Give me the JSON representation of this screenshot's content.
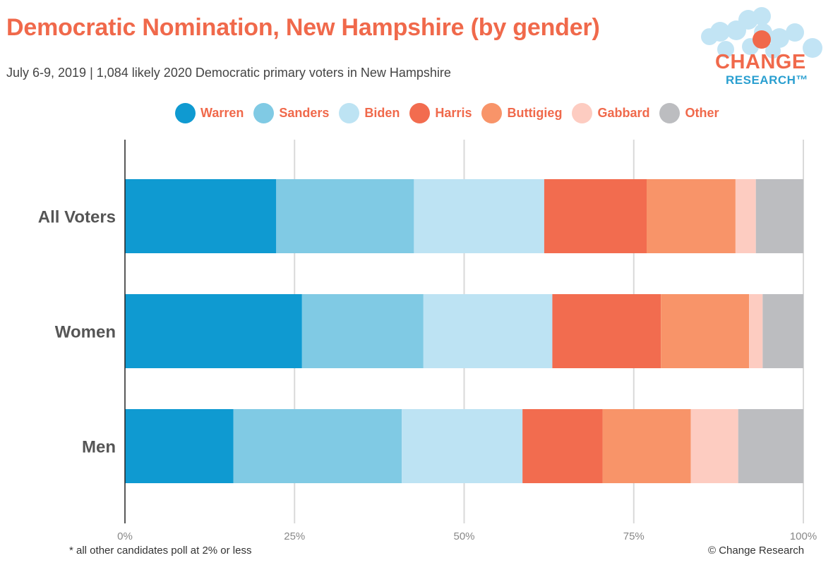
{
  "header": {
    "title": "Democratic Nomination, New Hampshire (by gender)",
    "subtitle": "July 6-9, 2019  | 1,084 likely 2020 Democratic primary voters in New Hampshire"
  },
  "logo": {
    "line1": "CHANGE",
    "line2": "RESEARCH™"
  },
  "footer": {
    "note": "* all other candidates poll at 2% or less",
    "credit": "© Change Research"
  },
  "chart_data": {
    "type": "bar",
    "orientation": "horizontal",
    "stacked": true,
    "title": "Democratic Nomination, New Hampshire (by gender)",
    "categories": [
      "All Voters",
      "Women",
      "Men"
    ],
    "series": [
      {
        "name": "Warren",
        "color": "#0f9ad1",
        "values": [
          22.3,
          26.1,
          16.0
        ]
      },
      {
        "name": "Sanders",
        "color": "#80cae4",
        "values": [
          20.3,
          17.9,
          24.8
        ]
      },
      {
        "name": "Biden",
        "color": "#bde3f3",
        "values": [
          19.2,
          19.0,
          17.8
        ]
      },
      {
        "name": "Harris",
        "color": "#f26c4f",
        "values": [
          15.1,
          16.0,
          11.8
        ]
      },
      {
        "name": "Buttigieg",
        "color": "#f89469",
        "values": [
          13.1,
          13.0,
          13.0
        ]
      },
      {
        "name": "Gabbard",
        "color": "#fdccc1",
        "values": [
          3.0,
          2.0,
          7.0
        ]
      },
      {
        "name": "Other",
        "color": "#bcbdc0",
        "values": [
          7.0,
          6.0,
          9.6
        ]
      }
    ],
    "xlim": [
      0,
      100
    ],
    "xticks": [
      "0%",
      "25%",
      "50%",
      "75%",
      "100%"
    ],
    "xtick_values": [
      0,
      25,
      50,
      75,
      100
    ],
    "grid": true,
    "legend_position": "top"
  }
}
